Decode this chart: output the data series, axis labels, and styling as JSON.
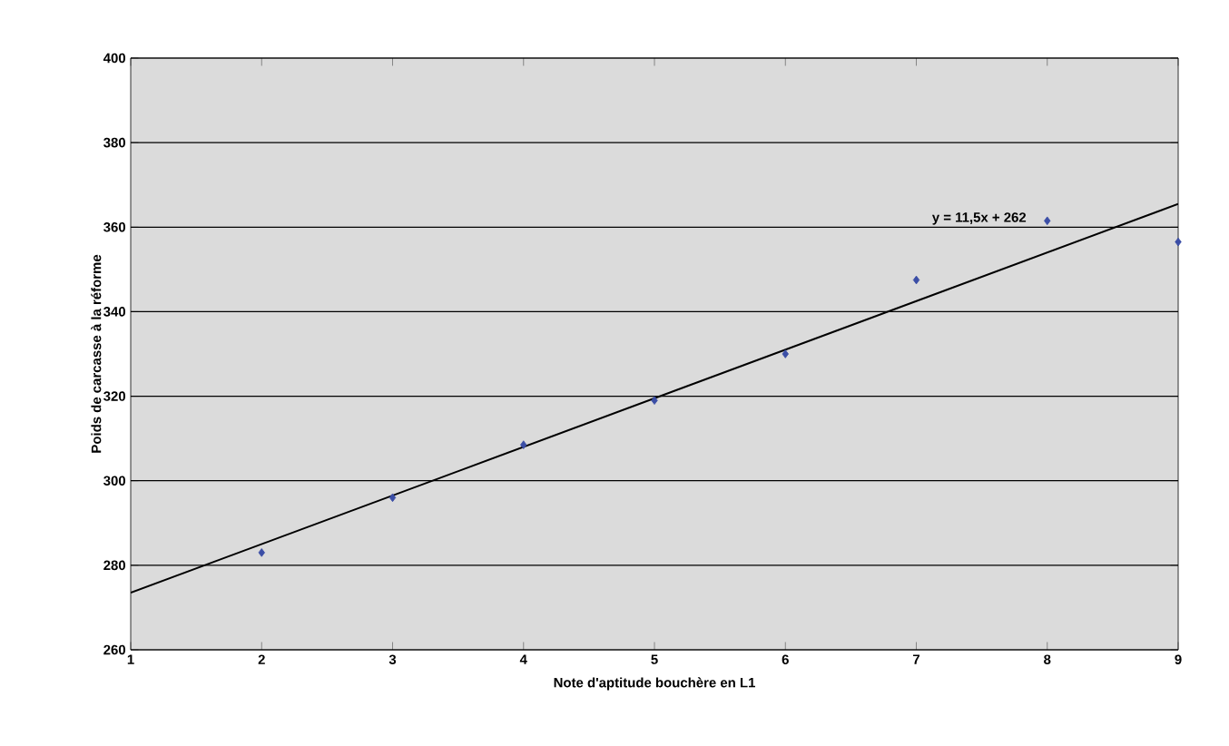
{
  "chart_data": {
    "type": "scatter",
    "xlabel": "Note d'aptitude bouchère en L1",
    "ylabel": "Poids de carcasse à la réforme",
    "x": [
      2,
      3,
      4,
      5,
      6,
      7,
      8,
      9
    ],
    "series": [
      {
        "color": "#3b4ea6",
        "marker": "diamond",
        "values": [
          283,
          296,
          308.5,
          319,
          330,
          347.5,
          361.5,
          356.5
        ]
      },
      {
        "type": "line",
        "color": "#000000",
        "x": [
          1,
          9
        ],
        "values": [
          273.5,
          365.5
        ]
      }
    ],
    "annotations": [
      "y = 11,5x + 262"
    ],
    "xlim": [
      1,
      9
    ],
    "ylim": [
      260,
      400
    ],
    "xticks": [
      1,
      2,
      3,
      4,
      5,
      6,
      7,
      8,
      9
    ],
    "yticks": [
      260,
      280,
      300,
      320,
      340,
      360,
      380,
      400
    ],
    "grid": "y"
  }
}
